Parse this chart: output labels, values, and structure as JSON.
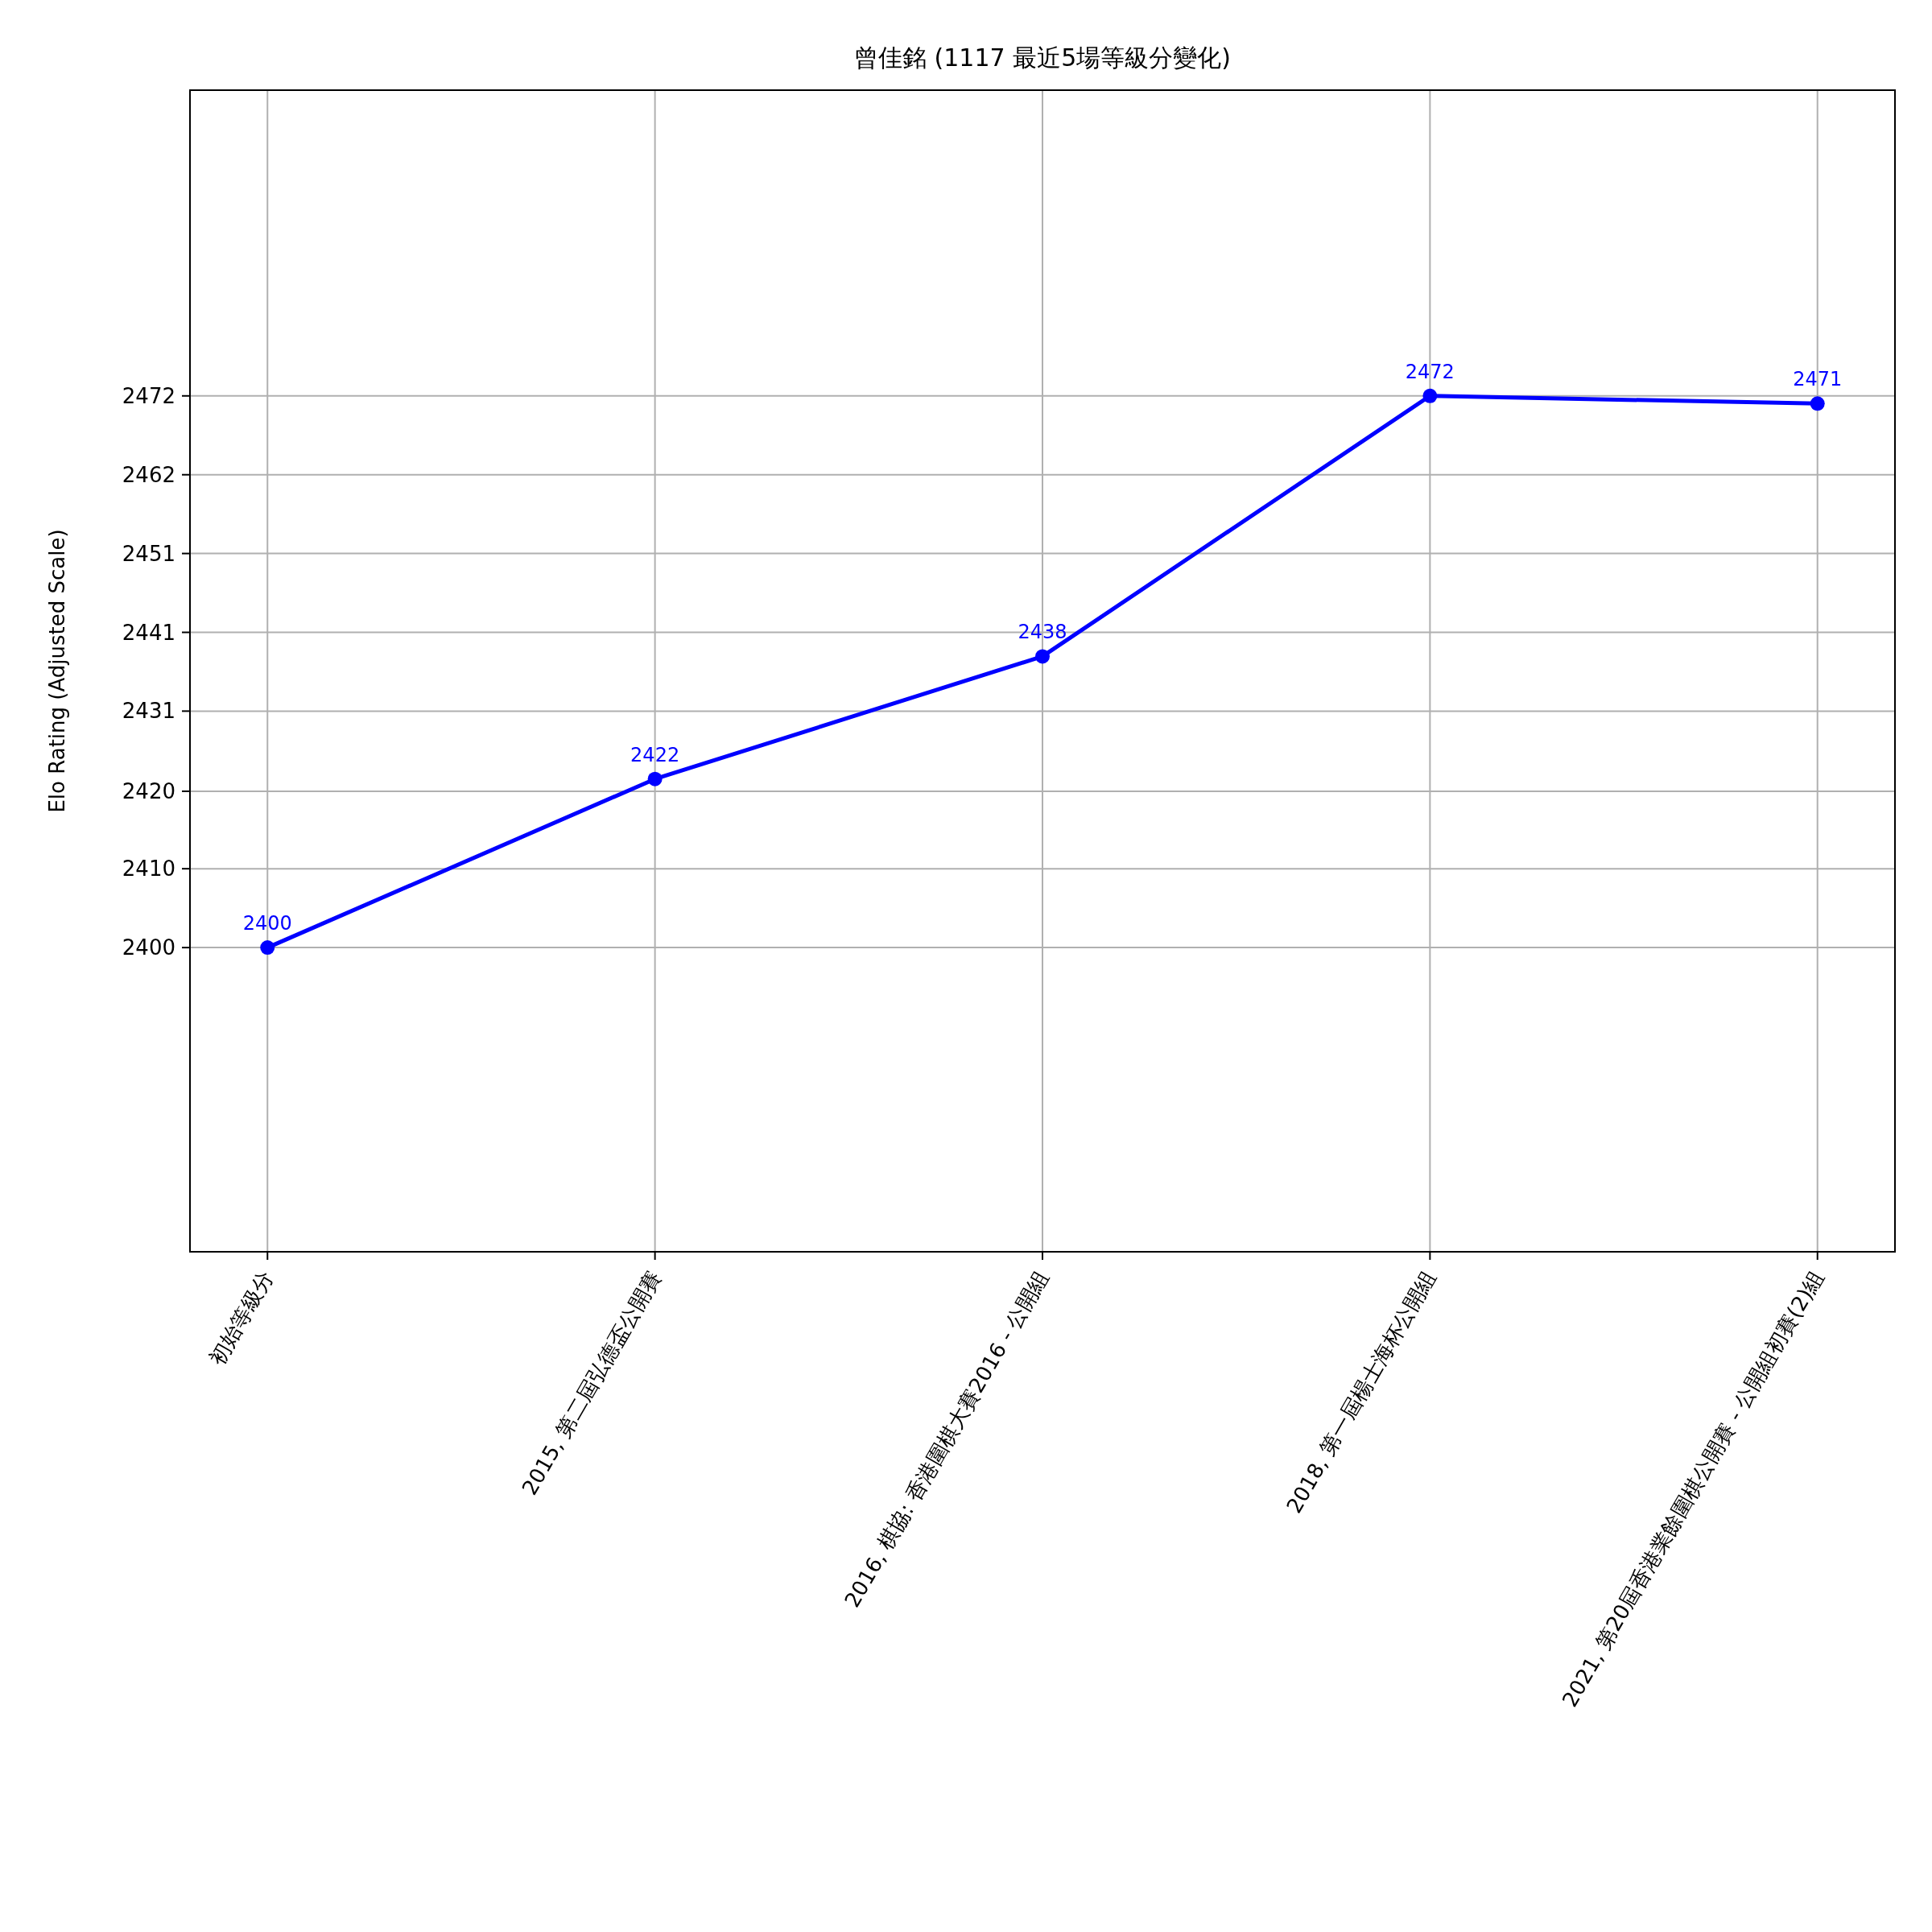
{
  "chart_data": {
    "type": "line",
    "title": "曾佳銘 (1117 最近5場等級分變化)",
    "ylabel": "Elo Rating (Adjusted Scale)",
    "categories": [
      "初始等級分",
      "2015, 第二屆弘德盃公開賽",
      "2016, 棋協: 香港圍棋大賽2016 - 公開組",
      "2018, 第一屆楊士海杯公開組",
      "2021, 第20屆香港業餘圍棋公開賽 - 公開組初賽(2)組"
    ],
    "values": [
      2400,
      2422,
      2438,
      2472,
      2471
    ],
    "color": "#0000ff",
    "marker": "circle",
    "data_labels": true,
    "grid": true,
    "ylim": [
      2360.3,
      2511.9
    ],
    "yticks": [
      2400,
      {
        "value": 2410.29,
        "label": "2410"
      },
      {
        "value": 2420.4,
        "label": "2420"
      },
      {
        "value": 2430.86,
        "label": "2431"
      },
      {
        "value": 2441.14,
        "label": "2441"
      },
      {
        "value": 2451.43,
        "label": "2451"
      },
      {
        "value": 2461.71,
        "label": "2462"
      },
      2472
    ]
  }
}
